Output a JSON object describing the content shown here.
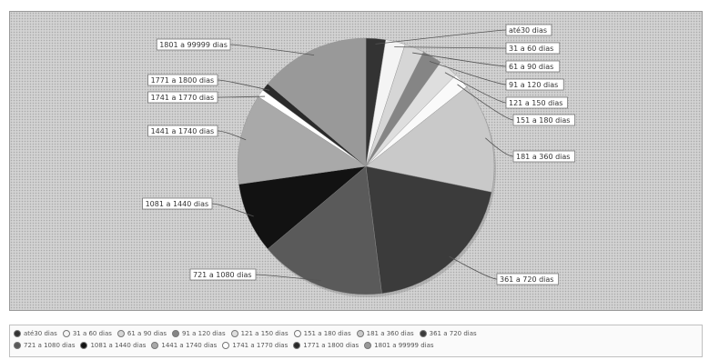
{
  "chart_data": {
    "type": "pie",
    "title": "",
    "slices": [
      {
        "label": "até30 dias",
        "value": 2.5,
        "color": "#333333"
      },
      {
        "label": "31 a 60 dias",
        "value": 2.5,
        "color": "#f4f4f4"
      },
      {
        "label": "61 a 90 dias",
        "value": 2.5,
        "color": "#d6d6d6"
      },
      {
        "label": "91 a 120 dias",
        "value": 2.5,
        "color": "#858585"
      },
      {
        "label": "121 a 150 dias",
        "value": 2.5,
        "color": "#dedede"
      },
      {
        "label": "151 a 180 dias",
        "value": 2.0,
        "color": "#fafafa"
      },
      {
        "label": "181 a 360 dias",
        "value": 14.0,
        "color": "#c9c9c9"
      },
      {
        "label": "361 a 720 dias",
        "value": 20.0,
        "color": "#3b3b3b"
      },
      {
        "label": "721 a 1080 dias",
        "value": 16.0,
        "color": "#5a5a5a"
      },
      {
        "label": "1081 a 1440 dias",
        "value": 9.0,
        "color": "#121212"
      },
      {
        "label": "1441 a 1740 dias",
        "value": 11.5,
        "color": "#a9a9a9"
      },
      {
        "label": "1741 a 1770 dias",
        "value": 1.0,
        "color": "#ffffff"
      },
      {
        "label": "1771 a 1800 dias",
        "value": 1.0,
        "color": "#2a2a2a"
      },
      {
        "label": "1801 a 99999 dias",
        "value": 14.0,
        "color": "#999999"
      }
    ],
    "legend_placement": "bottom",
    "legend_rows": [
      [
        "até30 dias",
        "31 a 60 dias",
        "61 a 90 dias",
        "91 a 120 dias",
        "121 a 150 dias",
        "151 a 180 dias",
        "181 a 360 dias",
        "361 a 720 dias"
      ],
      [
        "721 a 1080 dias",
        "1081 a 1440 dias",
        "1441 a 1740 dias",
        "1741 a 1770 dias",
        "1771 a 1800 dias",
        "1801 a 99999 dias"
      ]
    ]
  }
}
